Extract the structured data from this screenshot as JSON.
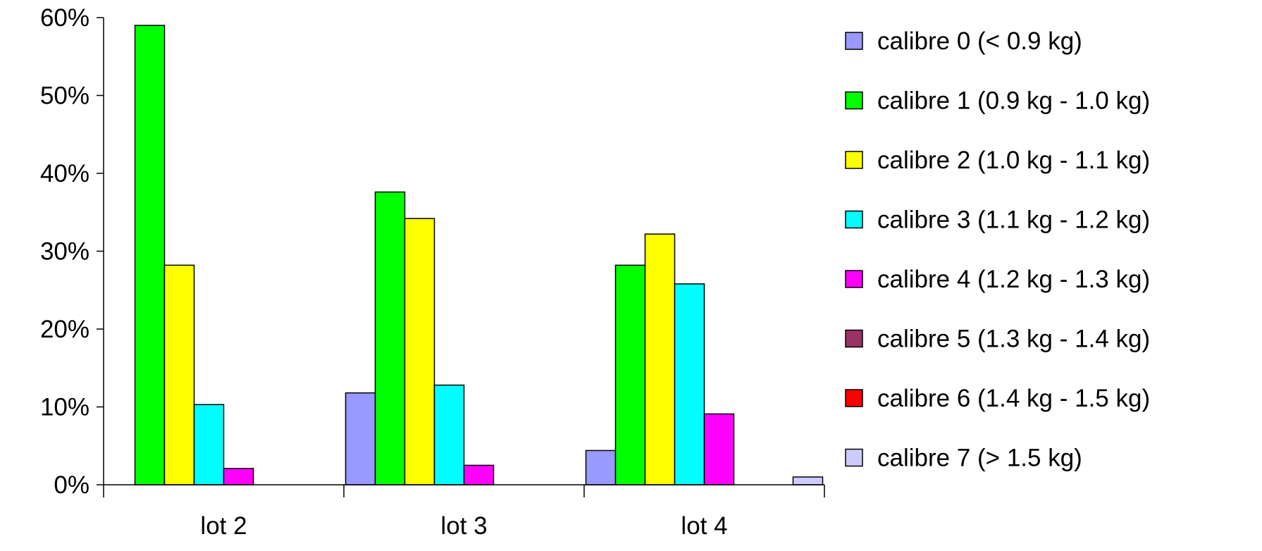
{
  "chart_data": {
    "type": "bar",
    "categories": [
      "lot 2",
      "lot 3",
      "lot 4"
    ],
    "series": [
      {
        "name": "calibre 0 (< 0.9 kg)",
        "color": "#9999ff",
        "values": [
          0,
          11.8,
          4.4
        ]
      },
      {
        "name": "calibre 1 (0.9 kg - 1.0 kg)",
        "color": "#00ff00",
        "values": [
          59,
          37.6,
          28.2
        ]
      },
      {
        "name": "calibre 2 (1.0 kg - 1.1 kg)",
        "color": "#ffff00",
        "values": [
          28.2,
          34.2,
          32.2
        ]
      },
      {
        "name": "calibre 3 (1.1 kg - 1.2 kg)",
        "color": "#00ffff",
        "values": [
          10.3,
          12.8,
          25.8
        ]
      },
      {
        "name": "calibre 4 (1.2 kg - 1.3 kg)",
        "color": "#ff00ff",
        "values": [
          2.1,
          2.5,
          9.1
        ]
      },
      {
        "name": "calibre 5 (1.3 kg - 1.4 kg)",
        "color": "#993366",
        "values": [
          0,
          0,
          0
        ]
      },
      {
        "name": "calibre 6 (1.4 kg - 1.5 kg)",
        "color": "#ff0000",
        "values": [
          0,
          0,
          0
        ]
      },
      {
        "name": "calibre 7 (> 1.5 kg)",
        "color": "#ccccff",
        "values": [
          0,
          0,
          1.0
        ]
      }
    ],
    "y_ticks": [
      "0%",
      "10%",
      "20%",
      "30%",
      "40%",
      "50%",
      "60%"
    ],
    "ylim": [
      0,
      60
    ],
    "title": "",
    "xlabel": "",
    "ylabel": "",
    "grid": false,
    "legend_position": "right"
  }
}
